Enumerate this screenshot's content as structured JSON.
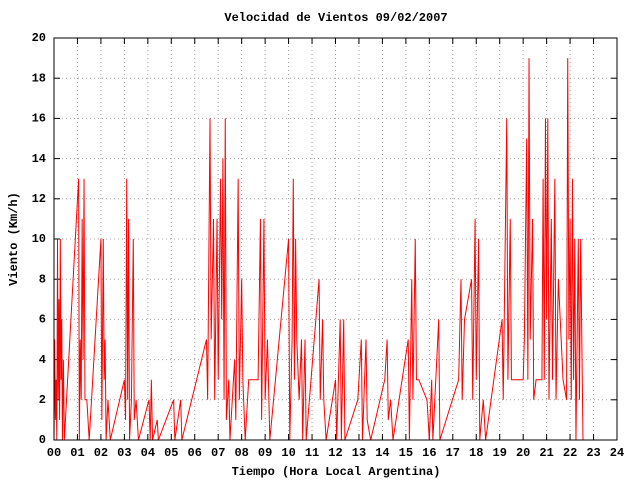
{
  "chart_data": {
    "type": "line",
    "title": "Velocidad de Vientos 09/02/2007",
    "x_label": "Tiempo (Hora Local Argentina)",
    "y_label": "Viento (Km/h)",
    "xlim": [
      0,
      24
    ],
    "ylim": [
      0,
      20
    ],
    "xticks": [
      {
        "value": 0,
        "label": "00"
      },
      {
        "value": 1,
        "label": "01"
      },
      {
        "value": 2,
        "label": "02"
      },
      {
        "value": 3,
        "label": "03"
      },
      {
        "value": 4,
        "label": "04"
      },
      {
        "value": 5,
        "label": "05"
      },
      {
        "value": 6,
        "label": "06"
      },
      {
        "value": 7,
        "label": "07"
      },
      {
        "value": 8,
        "label": "08"
      },
      {
        "value": 9,
        "label": "09"
      },
      10,
      11,
      12,
      13,
      14,
      15,
      16,
      17,
      18,
      19,
      20,
      21,
      22,
      23,
      24
    ],
    "yticks": [
      0,
      2,
      4,
      6,
      8,
      10,
      12,
      14,
      16,
      18,
      20
    ],
    "grid": true,
    "series": [
      {
        "color": "#ff0000",
        "x": [
          0.0,
          0.03,
          0.06,
          0.09,
          0.12,
          0.15,
          0.18,
          0.21,
          0.24,
          0.27,
          0.3,
          0.33,
          0.36,
          0.4,
          0.44,
          1.05,
          1.08,
          1.12,
          1.16,
          1.2,
          1.24,
          1.28,
          1.32,
          1.4,
          1.5,
          2.0,
          2.04,
          2.1,
          2.14,
          2.18,
          2.22,
          2.3,
          2.4,
          3.0,
          3.05,
          3.1,
          3.14,
          3.18,
          3.22,
          3.3,
          3.38,
          3.42,
          3.5,
          3.6,
          4.05,
          4.1,
          4.15,
          4.2,
          4.4,
          4.45,
          5.1,
          5.15,
          5.4,
          5.45,
          6.5,
          6.55,
          6.65,
          6.7,
          6.8,
          6.85,
          6.95,
          7.0,
          7.1,
          7.15,
          7.2,
          7.25,
          7.3,
          7.35,
          7.45,
          7.5,
          7.7,
          7.75,
          7.85,
          7.9,
          8.0,
          8.05,
          8.15,
          8.3,
          8.7,
          8.8,
          8.85,
          8.95,
          9.0,
          9.1,
          9.2,
          10.0,
          10.05,
          10.15,
          10.2,
          10.25,
          10.3,
          10.35,
          10.45,
          10.55,
          10.6,
          10.7,
          10.75,
          11.3,
          11.35,
          11.45,
          11.5,
          11.6,
          12.0,
          12.05,
          12.2,
          12.25,
          12.35,
          12.4,
          12.95,
          13.1,
          13.15,
          13.3,
          13.35,
          13.5,
          14.1,
          14.2,
          14.25,
          14.35,
          14.45,
          15.1,
          15.15,
          15.25,
          15.3,
          15.4,
          15.45,
          15.55,
          15.9,
          16.0,
          16.1,
          16.15,
          16.4,
          16.45,
          17.25,
          17.35,
          17.4,
          17.5,
          17.8,
          17.85,
          17.95,
          18.0,
          18.1,
          18.15,
          18.3,
          18.4,
          19.1,
          19.15,
          19.3,
          19.35,
          19.45,
          19.5,
          19.6,
          19.9,
          20.0,
          20.05,
          20.15,
          20.2,
          20.25,
          20.3,
          20.4,
          20.45,
          20.55,
          20.8,
          20.85,
          20.9,
          20.95,
          21.0,
          21.05,
          21.1,
          21.2,
          21.25,
          21.35,
          21.4,
          21.5,
          21.7,
          21.85,
          21.9,
          21.95,
          22.0,
          22.05,
          22.1,
          22.15,
          22.2,
          22.25,
          22.35,
          22.4,
          22.45,
          22.55
        ],
        "values": [
          0,
          5,
          1,
          3,
          0,
          10,
          2,
          7,
          1,
          10,
          3,
          6,
          0,
          4,
          0,
          13,
          0,
          5,
          2,
          11,
          4,
          13,
          2,
          2,
          0,
          10,
          1,
          10,
          3,
          5,
          0,
          2,
          0,
          3,
          1,
          13,
          2,
          11,
          0,
          2,
          10,
          1,
          2,
          0,
          2,
          0,
          3,
          0,
          1,
          0,
          2,
          0,
          2,
          0,
          5,
          2,
          16,
          5,
          11,
          2,
          11,
          3,
          13,
          6,
          14,
          2,
          16,
          1,
          3,
          0,
          4,
          1,
          13,
          2,
          8,
          3,
          0,
          3,
          3,
          11,
          1,
          11,
          2,
          5,
          0,
          10,
          0,
          5,
          13,
          3,
          10,
          5,
          2,
          5,
          0,
          5,
          0,
          8,
          2,
          6,
          2,
          0,
          3,
          0,
          6,
          0,
          6,
          0,
          2,
          5,
          0,
          5,
          1,
          0,
          3,
          5,
          1,
          2,
          0,
          5,
          0,
          8,
          2,
          10,
          3,
          3,
          2,
          0,
          3,
          0,
          6,
          0,
          3,
          8,
          2,
          6,
          8,
          2,
          11,
          3,
          10,
          0,
          2,
          0,
          6,
          2,
          16,
          3,
          11,
          3,
          3,
          3,
          3,
          5,
          15,
          3,
          19,
          5,
          11,
          2,
          3,
          3,
          13,
          3,
          16,
          6,
          16,
          2,
          11,
          3,
          13,
          2,
          8,
          3,
          2,
          19,
          5,
          11,
          2,
          13,
          3,
          10,
          0,
          10,
          2,
          10,
          0
        ]
      }
    ]
  }
}
